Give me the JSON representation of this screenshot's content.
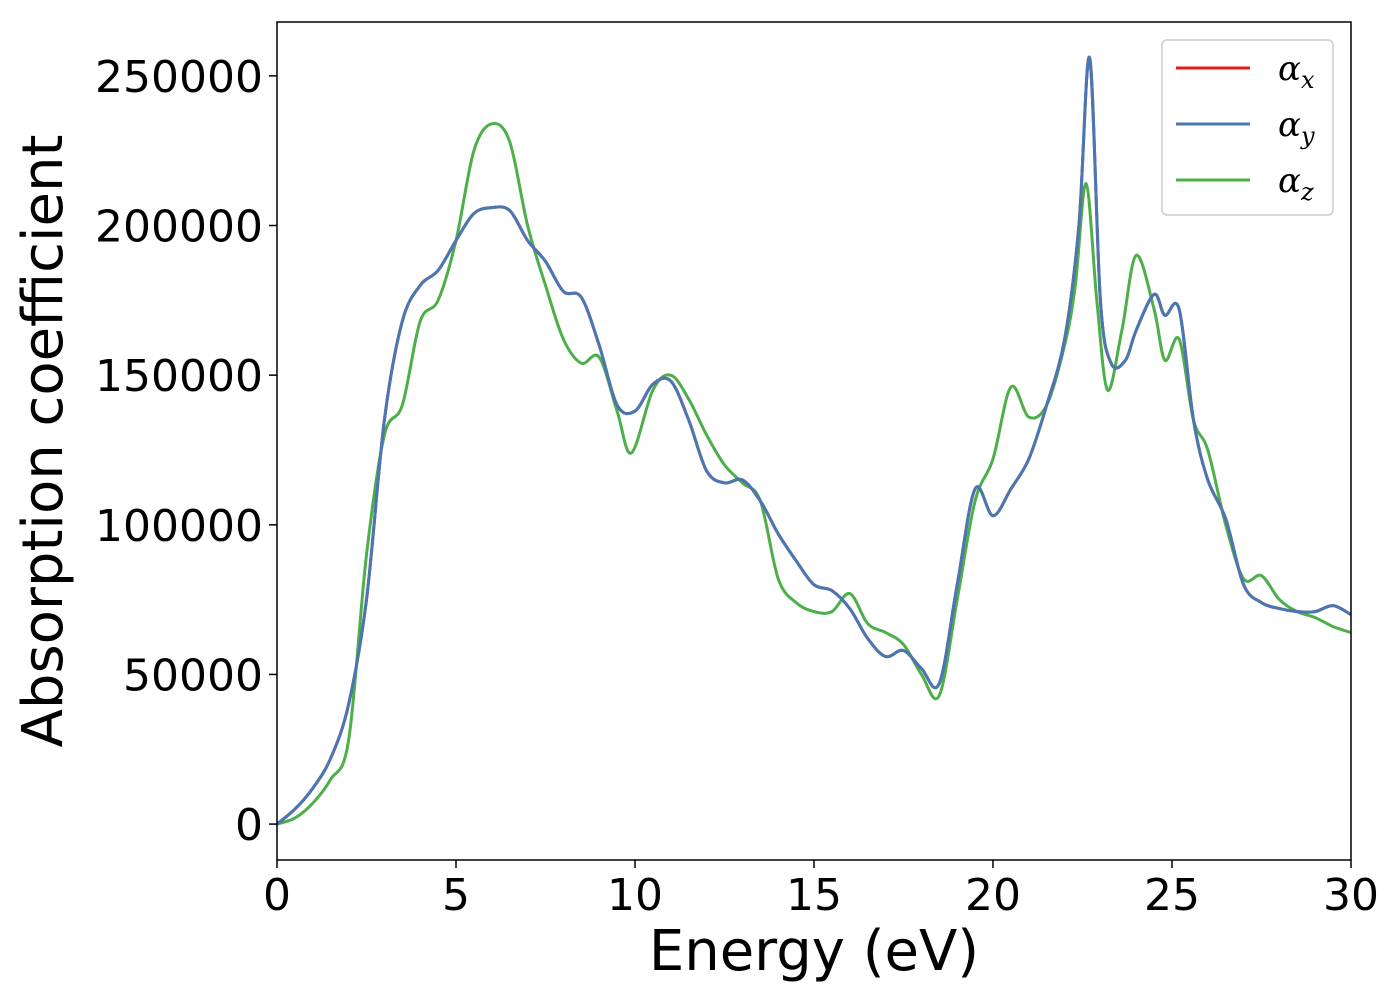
{
  "chart_data": {
    "type": "line",
    "title": "",
    "xlabel": "Energy (eV)",
    "ylabel": "Absorption coefficient",
    "xlim": [
      0,
      30
    ],
    "ylim": [
      -12000,
      268000
    ],
    "xticks": [
      0,
      5,
      10,
      15,
      20,
      25,
      30
    ],
    "yticks": [
      0,
      50000,
      100000,
      150000,
      200000,
      250000
    ],
    "grid": false,
    "legend_position": "top-right",
    "series": [
      {
        "name": "α",
        "subscript": "x",
        "color": "#e41a1c",
        "x": [
          0,
          0.5,
          1,
          1.5,
          2,
          2.5,
          3,
          3.5,
          4,
          4.5,
          5,
          5.5,
          6,
          6.5,
          7,
          7.5,
          8,
          8.5,
          9,
          9.5,
          10,
          10.5,
          11,
          11.5,
          12,
          12.5,
          13,
          13.5,
          14,
          14.5,
          15,
          15.5,
          16,
          16.5,
          17,
          17.5,
          18,
          18.5,
          19,
          19.5,
          20,
          20.5,
          21,
          21.5,
          22,
          22.4,
          22.7,
          23,
          23.3,
          23.7,
          24,
          24.5,
          24.8,
          25.2,
          25.6,
          26,
          26.5,
          27,
          27.5,
          28,
          28.5,
          29,
          29.5,
          30
        ],
        "y": [
          0,
          5000,
          12000,
          22000,
          40000,
          75000,
          135000,
          168000,
          180000,
          185000,
          195000,
          204000,
          206000,
          205000,
          195000,
          188000,
          178000,
          176000,
          160000,
          140000,
          138000,
          147000,
          148000,
          135000,
          118000,
          114000,
          115000,
          108000,
          97000,
          88000,
          80000,
          78000,
          72000,
          62000,
          56000,
          58000,
          52000,
          47000,
          80000,
          112000,
          103000,
          112000,
          122000,
          140000,
          162000,
          200000,
          256000,
          175000,
          154000,
          155000,
          165000,
          177000,
          170000,
          172000,
          135000,
          115000,
          102000,
          80000,
          74000,
          72000,
          71000,
          71000,
          73000,
          70000
        ]
      },
      {
        "name": "α",
        "subscript": "y",
        "color": "#4878b4",
        "x": [
          0,
          0.5,
          1,
          1.5,
          2,
          2.5,
          3,
          3.5,
          4,
          4.5,
          5,
          5.5,
          6,
          6.5,
          7,
          7.5,
          8,
          8.5,
          9,
          9.5,
          10,
          10.5,
          11,
          11.5,
          12,
          12.5,
          13,
          13.5,
          14,
          14.5,
          15,
          15.5,
          16,
          16.5,
          17,
          17.5,
          18,
          18.5,
          19,
          19.5,
          20,
          20.5,
          21,
          21.5,
          22,
          22.4,
          22.7,
          23,
          23.3,
          23.7,
          24,
          24.5,
          24.8,
          25.2,
          25.6,
          26,
          26.5,
          27,
          27.5,
          28,
          28.5,
          29,
          29.5,
          30
        ],
        "y": [
          0,
          5000,
          12000,
          22000,
          40000,
          75000,
          135000,
          168000,
          180000,
          185000,
          195000,
          204000,
          206000,
          205000,
          195000,
          188000,
          178000,
          176000,
          160000,
          140000,
          138000,
          147000,
          148000,
          135000,
          118000,
          114000,
          115000,
          108000,
          97000,
          88000,
          80000,
          78000,
          72000,
          62000,
          56000,
          58000,
          52000,
          47000,
          80000,
          112000,
          103000,
          112000,
          122000,
          140000,
          162000,
          200000,
          256000,
          175000,
          154000,
          155000,
          165000,
          177000,
          170000,
          172000,
          135000,
          115000,
          102000,
          80000,
          74000,
          72000,
          71000,
          71000,
          73000,
          70000
        ]
      },
      {
        "name": "α",
        "subscript": "z",
        "color": "#4daf4a",
        "x": [
          0,
          0.5,
          1,
          1.5,
          2,
          2.5,
          3,
          3.5,
          4,
          4.5,
          5,
          5.5,
          6,
          6.5,
          7,
          7.5,
          8,
          8.5,
          9,
          9.5,
          9.9,
          10.5,
          11,
          11.5,
          12,
          12.5,
          13,
          13.5,
          14,
          14.5,
          15,
          15.5,
          16,
          16.5,
          17,
          17.5,
          18,
          18.5,
          19,
          19.5,
          20,
          20.5,
          21,
          21.5,
          22,
          22.3,
          22.6,
          22.9,
          23.2,
          23.6,
          24,
          24.5,
          24.8,
          25.2,
          25.6,
          26,
          26.5,
          27,
          27.5,
          28,
          28.5,
          29,
          29.5,
          30
        ],
        "y": [
          0,
          2000,
          7000,
          15000,
          28000,
          90000,
          130000,
          140000,
          168000,
          175000,
          195000,
          225000,
          234000,
          228000,
          200000,
          180000,
          162000,
          154000,
          156000,
          138000,
          124000,
          145000,
          150000,
          142000,
          130000,
          120000,
          114000,
          108000,
          82000,
          74000,
          71000,
          71000,
          77000,
          67000,
          64000,
          60000,
          50000,
          43000,
          75000,
          108000,
          122000,
          146000,
          136000,
          140000,
          160000,
          180000,
          214000,
          175000,
          145000,
          165000,
          190000,
          172000,
          155000,
          162000,
          135000,
          125000,
          100000,
          82000,
          83000,
          75000,
          71000,
          69000,
          66000,
          64000
        ]
      }
    ]
  }
}
